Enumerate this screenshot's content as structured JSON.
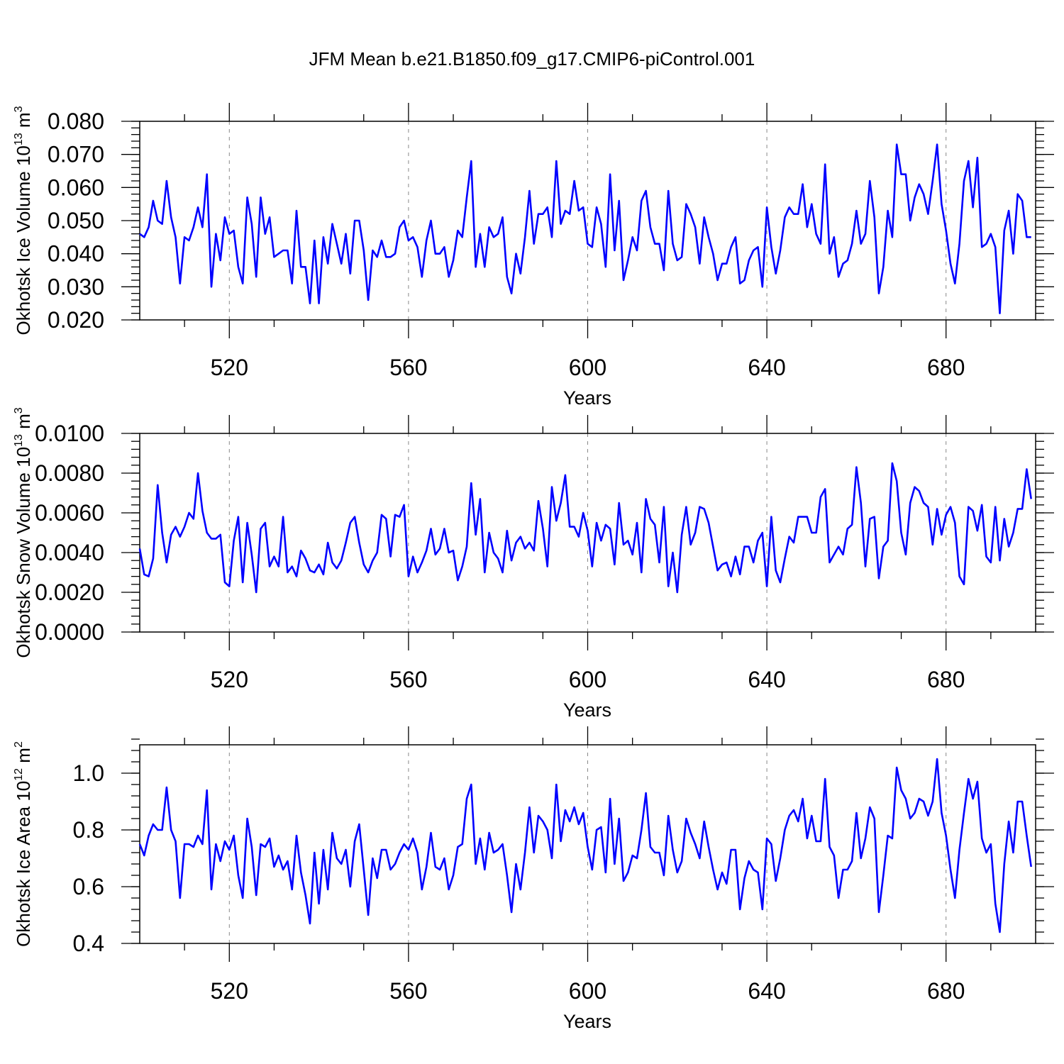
{
  "chart_data": {
    "type": "line",
    "title": "JFM Mean b.e21.B1850.f09_g17.CMIP6-piControl.001",
    "line_color": "#0000ff",
    "grid_color": "#888888",
    "panels": [
      {
        "id": "ice-volume",
        "ylabel": "Okhotsk Ice Volume 10",
        "ylabel_sup": "13",
        "ylabel_unit": "m",
        "ylabel_unit_sup": "3",
        "xlabel": "Years",
        "xlim": [
          500,
          700
        ],
        "ylim": [
          0.02,
          0.08
        ],
        "x_ticks": [
          520,
          560,
          600,
          640,
          680
        ],
        "y_ticks": [
          0.02,
          0.03,
          0.04,
          0.05,
          0.06,
          0.07,
          0.08
        ],
        "y_tick_labels": [
          "0.020",
          "0.030",
          "0.040",
          "0.050",
          "0.060",
          "0.070",
          "0.080"
        ],
        "x_start": 500,
        "values": [
          0.046,
          0.045,
          0.048,
          0.056,
          0.05,
          0.049,
          0.062,
          0.051,
          0.045,
          0.031,
          0.045,
          0.044,
          0.048,
          0.054,
          0.048,
          0.064,
          0.03,
          0.046,
          0.038,
          0.051,
          0.046,
          0.047,
          0.036,
          0.031,
          0.057,
          0.049,
          0.033,
          0.057,
          0.046,
          0.051,
          0.039,
          0.04,
          0.041,
          0.041,
          0.031,
          0.053,
          0.036,
          0.036,
          0.025,
          0.044,
          0.025,
          0.045,
          0.037,
          0.049,
          0.043,
          0.037,
          0.046,
          0.034,
          0.05,
          0.05,
          0.041,
          0.026,
          0.041,
          0.039,
          0.044,
          0.039,
          0.039,
          0.04,
          0.048,
          0.05,
          0.044,
          0.045,
          0.042,
          0.033,
          0.044,
          0.05,
          0.04,
          0.04,
          0.042,
          0.033,
          0.038,
          0.047,
          0.045,
          0.057,
          0.068,
          0.036,
          0.046,
          0.036,
          0.048,
          0.045,
          0.046,
          0.051,
          0.033,
          0.028,
          0.04,
          0.034,
          0.045,
          0.059,
          0.043,
          0.052,
          0.052,
          0.054,
          0.045,
          0.068,
          0.049,
          0.053,
          0.052,
          0.062,
          0.053,
          0.054,
          0.043,
          0.042,
          0.054,
          0.049,
          0.036,
          0.064,
          0.041,
          0.056,
          0.032,
          0.038,
          0.045,
          0.041,
          0.056,
          0.059,
          0.048,
          0.043,
          0.043,
          0.035,
          0.059,
          0.043,
          0.038,
          0.039,
          0.055,
          0.052,
          0.048,
          0.037,
          0.051,
          0.045,
          0.04,
          0.032,
          0.037,
          0.037,
          0.042,
          0.045,
          0.031,
          0.032,
          0.038,
          0.041,
          0.042,
          0.03,
          0.054,
          0.042,
          0.034,
          0.041,
          0.051,
          0.054,
          0.052,
          0.052,
          0.061,
          0.048,
          0.055,
          0.046,
          0.043,
          0.067,
          0.04,
          0.045,
          0.033,
          0.037,
          0.038,
          0.043,
          0.053,
          0.043,
          0.046,
          0.062,
          0.051,
          0.028,
          0.036,
          0.053,
          0.045,
          0.073,
          0.064,
          0.064,
          0.05,
          0.057,
          0.061,
          0.058,
          0.052,
          0.062,
          0.073,
          0.055,
          0.047,
          0.037,
          0.031,
          0.043,
          0.062,
          0.068,
          0.054,
          0.069,
          0.042,
          0.043,
          0.046,
          0.042,
          0.022,
          0.047,
          0.053,
          0.04,
          0.058,
          0.056,
          0.045,
          0.045
        ]
      },
      {
        "id": "snow-volume",
        "ylabel": "Okhotsk Snow Volume 10",
        "ylabel_sup": "13",
        "ylabel_unit": "m",
        "ylabel_unit_sup": "3",
        "xlabel": "Years",
        "xlim": [
          500,
          700
        ],
        "ylim": [
          0.0,
          0.01
        ],
        "x_ticks": [
          520,
          560,
          600,
          640,
          680
        ],
        "y_ticks": [
          0.0,
          0.002,
          0.004,
          0.006,
          0.008,
          0.01
        ],
        "y_tick_labels": [
          "0.0000",
          "0.0020",
          "0.0040",
          "0.0060",
          "0.0080",
          "0.0100"
        ],
        "x_start": 500,
        "values": [
          0.0042,
          0.0029,
          0.0028,
          0.0037,
          0.0074,
          0.005,
          0.0035,
          0.0049,
          0.0053,
          0.0048,
          0.0053,
          0.006,
          0.0057,
          0.008,
          0.0061,
          0.005,
          0.0047,
          0.0047,
          0.0049,
          0.0025,
          0.0023,
          0.0046,
          0.0058,
          0.0025,
          0.0055,
          0.0039,
          0.002,
          0.0052,
          0.0055,
          0.0033,
          0.0038,
          0.0033,
          0.0058,
          0.003,
          0.0033,
          0.0028,
          0.0041,
          0.0037,
          0.0031,
          0.003,
          0.0034,
          0.0029,
          0.0045,
          0.0035,
          0.0032,
          0.0036,
          0.0045,
          0.0055,
          0.0058,
          0.0045,
          0.0034,
          0.003,
          0.0036,
          0.004,
          0.0059,
          0.0057,
          0.0038,
          0.0059,
          0.0058,
          0.0064,
          0.0028,
          0.0038,
          0.003,
          0.0035,
          0.0041,
          0.0052,
          0.0039,
          0.0042,
          0.0052,
          0.004,
          0.0041,
          0.0026,
          0.0033,
          0.0043,
          0.0075,
          0.0049,
          0.0067,
          0.003,
          0.005,
          0.004,
          0.0037,
          0.003,
          0.0051,
          0.0036,
          0.0045,
          0.0048,
          0.0042,
          0.0045,
          0.0041,
          0.0066,
          0.0052,
          0.0033,
          0.0073,
          0.0056,
          0.0065,
          0.0079,
          0.0053,
          0.0053,
          0.0048,
          0.006,
          0.0051,
          0.0033,
          0.0055,
          0.0046,
          0.0054,
          0.0052,
          0.0034,
          0.0065,
          0.0044,
          0.0046,
          0.0039,
          0.0055,
          0.003,
          0.0067,
          0.0057,
          0.0054,
          0.0035,
          0.0063,
          0.0023,
          0.004,
          0.002,
          0.0049,
          0.0063,
          0.0044,
          0.005,
          0.0063,
          0.0062,
          0.0055,
          0.0043,
          0.0031,
          0.0034,
          0.0035,
          0.0028,
          0.0038,
          0.0029,
          0.0043,
          0.0043,
          0.0035,
          0.0046,
          0.005,
          0.0023,
          0.0058,
          0.0031,
          0.0025,
          0.0037,
          0.0048,
          0.0045,
          0.0058,
          0.0058,
          0.0058,
          0.005,
          0.005,
          0.0068,
          0.0072,
          0.0035,
          0.0039,
          0.0043,
          0.0039,
          0.0052,
          0.0054,
          0.0083,
          0.0065,
          0.0033,
          0.0057,
          0.0058,
          0.0027,
          0.0043,
          0.0046,
          0.0085,
          0.0076,
          0.005,
          0.0039,
          0.0065,
          0.0073,
          0.0071,
          0.0065,
          0.0063,
          0.0044,
          0.0062,
          0.0049,
          0.0059,
          0.0063,
          0.0055,
          0.0028,
          0.0024,
          0.0063,
          0.0061,
          0.0051,
          0.0064,
          0.0038,
          0.0035,
          0.0063,
          0.0036,
          0.0057,
          0.0043,
          0.005,
          0.0062,
          0.0062,
          0.0082,
          0.0067
        ]
      },
      {
        "id": "ice-area",
        "ylabel": "Okhotsk Ice Area 10",
        "ylabel_sup": "12",
        "ylabel_unit": "m",
        "ylabel_unit_sup": "2",
        "xlabel": "Years",
        "xlim": [
          500,
          700
        ],
        "ylim": [
          0.4,
          1.1
        ],
        "x_ticks": [
          520,
          560,
          600,
          640,
          680
        ],
        "y_ticks": [
          0.4,
          0.6,
          0.8,
          1.0
        ],
        "y_tick_labels": [
          "0.4",
          "0.6",
          "0.8",
          "1.0"
        ],
        "x_start": 500,
        "values": [
          0.75,
          0.71,
          0.78,
          0.82,
          0.8,
          0.8,
          0.95,
          0.8,
          0.76,
          0.56,
          0.75,
          0.75,
          0.74,
          0.78,
          0.75,
          0.94,
          0.59,
          0.75,
          0.69,
          0.76,
          0.73,
          0.78,
          0.64,
          0.56,
          0.84,
          0.74,
          0.57,
          0.75,
          0.74,
          0.77,
          0.67,
          0.71,
          0.66,
          0.69,
          0.59,
          0.78,
          0.65,
          0.57,
          0.47,
          0.72,
          0.54,
          0.73,
          0.59,
          0.79,
          0.7,
          0.68,
          0.73,
          0.6,
          0.76,
          0.82,
          0.66,
          0.5,
          0.7,
          0.63,
          0.73,
          0.73,
          0.66,
          0.68,
          0.72,
          0.75,
          0.73,
          0.77,
          0.72,
          0.59,
          0.67,
          0.79,
          0.67,
          0.66,
          0.7,
          0.59,
          0.64,
          0.74,
          0.75,
          0.91,
          0.96,
          0.68,
          0.77,
          0.66,
          0.79,
          0.72,
          0.73,
          0.75,
          0.64,
          0.51,
          0.68,
          0.59,
          0.72,
          0.88,
          0.72,
          0.85,
          0.83,
          0.8,
          0.7,
          0.96,
          0.76,
          0.87,
          0.83,
          0.88,
          0.82,
          0.86,
          0.74,
          0.66,
          0.8,
          0.81,
          0.65,
          0.91,
          0.68,
          0.84,
          0.62,
          0.65,
          0.71,
          0.7,
          0.8,
          0.93,
          0.74,
          0.72,
          0.72,
          0.64,
          0.85,
          0.73,
          0.65,
          0.69,
          0.84,
          0.79,
          0.75,
          0.7,
          0.83,
          0.74,
          0.66,
          0.59,
          0.65,
          0.61,
          0.73,
          0.73,
          0.52,
          0.63,
          0.69,
          0.66,
          0.65,
          0.52,
          0.77,
          0.75,
          0.62,
          0.7,
          0.8,
          0.85,
          0.87,
          0.83,
          0.91,
          0.77,
          0.85,
          0.76,
          0.76,
          0.98,
          0.74,
          0.71,
          0.56,
          0.66,
          0.66,
          0.69,
          0.86,
          0.7,
          0.77,
          0.88,
          0.84,
          0.51,
          0.64,
          0.78,
          0.77,
          1.02,
          0.94,
          0.91,
          0.84,
          0.86,
          0.91,
          0.9,
          0.85,
          0.9,
          1.05,
          0.86,
          0.78,
          0.66,
          0.56,
          0.73,
          0.86,
          0.98,
          0.91,
          0.97,
          0.77,
          0.72,
          0.75,
          0.54,
          0.44,
          0.68,
          0.83,
          0.72,
          0.9,
          0.9,
          0.78,
          0.67
        ]
      }
    ]
  }
}
